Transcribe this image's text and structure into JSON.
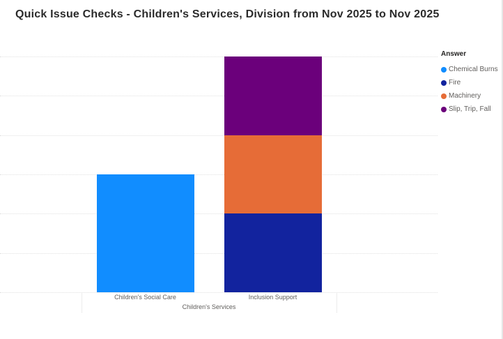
{
  "title": "Quick Issue Checks - Children's Services, Division from Nov 2025 to Nov 2025",
  "legend": {
    "title": "Answer",
    "items": [
      {
        "label": "Chemical Burns",
        "color": "#118DFF"
      },
      {
        "label": "Fire",
        "color": "#12239E"
      },
      {
        "label": "Machinery",
        "color": "#E66C37"
      },
      {
        "label": "Slip, Trip, Fall",
        "color": "#6B007B"
      }
    ]
  },
  "chart_data": {
    "type": "bar",
    "stacked": true,
    "title": "Quick Issue Checks - Children's Services, Division from Nov 2025 to Nov 2025",
    "categories": [
      "Children's Social Care",
      "Inclusion Support"
    ],
    "series": [
      {
        "name": "Chemical Burns",
        "color": "#118DFF",
        "values": [
          3,
          0
        ]
      },
      {
        "name": "Fire",
        "color": "#12239E",
        "values": [
          0,
          2
        ]
      },
      {
        "name": "Machinery",
        "color": "#E66C37",
        "values": [
          0,
          2
        ]
      },
      {
        "name": "Slip, Trip, Fall",
        "color": "#6B007B",
        "values": [
          0,
          2
        ]
      }
    ],
    "xlabel": "Children's Services",
    "ylabel": "",
    "ylim": [
      0,
      6
    ],
    "gridline_step": 1,
    "grid": true,
    "y_axis_labels_visible": false,
    "legend_position": "right",
    "legend_title": "Answer"
  }
}
